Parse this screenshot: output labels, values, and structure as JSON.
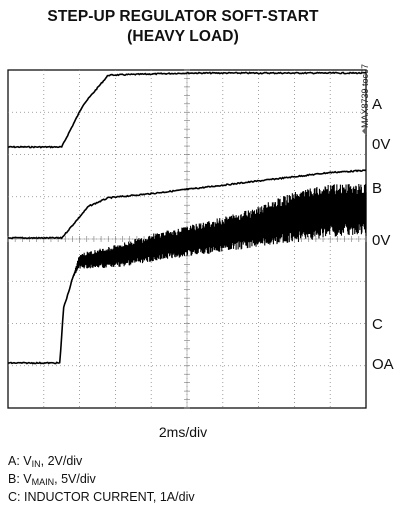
{
  "chart_data": {
    "type": "line",
    "title": "STEP-UP REGULATOR SOFT-START",
    "subtitle": "(HEAVY LOAD)",
    "xlabel": "2ms/div",
    "grid": true,
    "grid_divisions": {
      "x": 10,
      "y": 8
    },
    "time_per_div_ms": 2,
    "doc_id": "MAX8739 toc07",
    "channel_labels": [
      {
        "name": "A",
        "ground": "0V"
      },
      {
        "name": "B",
        "ground": "0V"
      },
      {
        "name": "C",
        "ground": "OA"
      }
    ],
    "series": [
      {
        "name": "A",
        "scale": "2V/div",
        "x": [
          0,
          3.0,
          4.2,
          5.6,
          10.0,
          20.0
        ],
        "y": [
          0,
          0,
          1.0,
          1.7,
          1.75,
          1.75
        ]
      },
      {
        "name": "B",
        "scale": "5V/div",
        "x": [
          0,
          3.0,
          3.6,
          4.5,
          5.6,
          8,
          10,
          12,
          14,
          16,
          18,
          20
        ],
        "y": [
          0,
          0,
          0.3,
          0.75,
          0.95,
          1.05,
          1.15,
          1.25,
          1.35,
          1.45,
          1.55,
          1.6
        ]
      },
      {
        "name": "C",
        "scale": "1A/div",
        "x": [
          0,
          2.9,
          3.1,
          3.4,
          3.6,
          4.0,
          6,
          8,
          10,
          12,
          14,
          16,
          18,
          20
        ],
        "y": [
          0,
          0,
          1.3,
          1.7,
          2.0,
          2.4,
          2.5,
          2.7,
          2.85,
          3.0,
          3.2,
          3.4,
          3.55,
          3.6
        ],
        "noise_band": [
          0,
          0,
          0,
          0,
          0,
          0.3,
          0.45,
          0.55,
          0.6,
          0.7,
          0.8,
          1.0,
          1.05,
          1.0
        ]
      }
    ],
    "legend": [
      {
        "prefix": "A: V",
        "sub": "IN",
        "suffix": ", 2V/div"
      },
      {
        "prefix": "B: V",
        "sub": "MAIN",
        "suffix": ", 5V/div"
      },
      {
        "prefix": "C: INDUCTOR CURRENT, 1A/div",
        "sub": "",
        "suffix": ""
      }
    ]
  }
}
